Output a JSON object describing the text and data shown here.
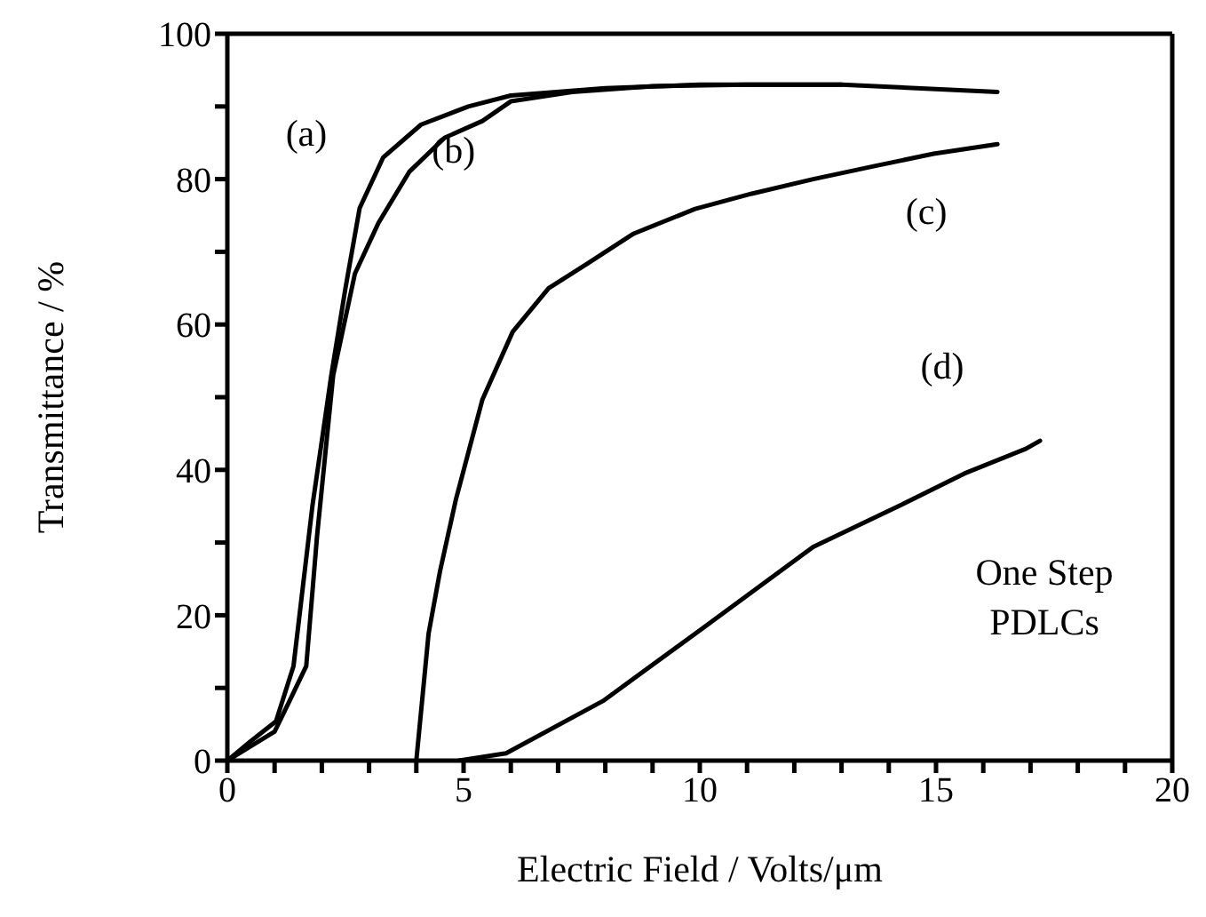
{
  "chart_data": {
    "type": "line",
    "xlabel": "Electric Field / Volts/μm",
    "ylabel": "Transmittance / %",
    "xlim": [
      0,
      20
    ],
    "ylim": [
      0,
      100
    ],
    "xticks": [
      0,
      {
        "value": 1,
        "label": null
      },
      {
        "value": 2,
        "label": null
      },
      {
        "value": 3,
        "label": null
      },
      {
        "value": 4,
        "label": null
      },
      5,
      {
        "value": 6,
        "label": null
      },
      {
        "value": 7,
        "label": null
      },
      {
        "value": 8,
        "label": null
      },
      {
        "value": 9,
        "label": null
      },
      10,
      {
        "value": 11,
        "label": null
      },
      {
        "value": 12,
        "label": null
      },
      {
        "value": 13,
        "label": null
      },
      {
        "value": 14,
        "label": null
      },
      15,
      {
        "value": 16,
        "label": null
      },
      {
        "value": 17,
        "label": null
      },
      {
        "value": 18,
        "label": null
      },
      {
        "value": 19,
        "label": null
      },
      20
    ],
    "yticks": [
      0,
      {
        "value": 10,
        "label": null
      },
      20,
      {
        "value": 30,
        "label": null
      },
      40,
      {
        "value": 50,
        "label": null
      },
      60,
      {
        "value": 70,
        "label": null
      },
      80,
      {
        "value": 90,
        "label": null
      },
      100
    ],
    "marker": "none",
    "line_style": "solid",
    "series": [
      {
        "name": "(a)",
        "color": "#000000",
        "x": [
          0,
          0.5,
          1.03,
          1.4,
          1.8,
          2.2,
          2.5,
          2.8,
          3.3,
          4.1,
          5.1,
          6,
          8,
          10,
          13,
          16.3
        ],
        "values": [
          0,
          2.7,
          5.4,
          13,
          35,
          53,
          65,
          76,
          83,
          87.5,
          90,
          91.5,
          92.5,
          93,
          93,
          92
        ]
      },
      {
        "name": "(b)",
        "color": "#000000",
        "x": [
          0,
          0.5,
          1,
          1.3,
          1.67,
          1.9,
          2.24,
          2.7,
          3.2,
          3.85,
          4.6,
          5.4,
          6,
          7.3,
          9,
          11,
          13
        ],
        "values": [
          0,
          2,
          4,
          8,
          13,
          31,
          53,
          67,
          74,
          81,
          85.7,
          88,
          90.7,
          92,
          92.8,
          93,
          93
        ]
      },
      {
        "name": "(c)",
        "color": "#000000",
        "x": [
          4,
          4.26,
          4.5,
          4.84,
          5.4,
          6.04,
          6.8,
          7.6,
          8.6,
          9.9,
          11.1,
          12.4,
          13.7,
          14.95,
          16.3
        ],
        "values": [
          0,
          17.5,
          26,
          36,
          49.7,
          59,
          65,
          68.3,
          72.5,
          75.9,
          78,
          80,
          81.8,
          83.5,
          84.8
        ]
      },
      {
        "name": "(d)",
        "color": "#000000",
        "x": [
          4.9,
          5.9,
          7.95,
          10.1,
          12.4,
          14.3,
          15.6,
          16.9,
          17.2
        ],
        "values": [
          0,
          1,
          8.2,
          18.4,
          29.4,
          35.3,
          39.5,
          42.9,
          44
        ]
      }
    ],
    "annotations": [
      "One Step PDLCs"
    ]
  }
}
